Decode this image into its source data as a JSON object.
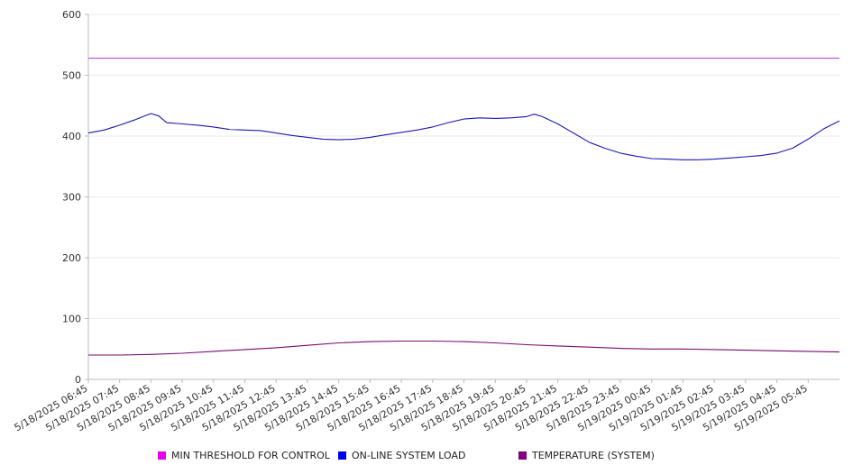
{
  "chart_data": {
    "type": "line",
    "x_ticks": [
      "5/18/2025 06:45",
      "5/18/2025 07:45",
      "5/18/2025 08:45",
      "5/18/2025 09:45",
      "5/18/2025 10:45",
      "5/18/2025 11:45",
      "5/18/2025 12:45",
      "5/18/2025 13:45",
      "5/18/2025 14:45",
      "5/18/2025 15:45",
      "5/18/2025 16:45",
      "5/18/2025 17:45",
      "5/18/2025 18:45",
      "5/18/2025 19:45",
      "5/18/2025 20:45",
      "5/18/2025 21:45",
      "5/18/2025 22:45",
      "5/18/2025 23:45",
      "5/19/2025 00:45",
      "5/19/2025 01:45",
      "5/19/2025 02:45",
      "5/19/2025 03:45",
      "5/19/2025 04:45",
      "5/19/2025 05:45"
    ],
    "y_ticks": [
      "0",
      "100",
      "200",
      "300",
      "400",
      "500",
      "600"
    ],
    "ylim": [
      0,
      600
    ],
    "grid": true,
    "legend_position": "bottom",
    "series": [
      {
        "name": "MIN THRESHOLD FOR CONTROL",
        "color": "#e600e6",
        "line_color": "#b84bd6",
        "x": [
          "5/18/2025 06:45",
          "5/19/2025 06:45"
        ],
        "values": [
          528,
          528
        ]
      },
      {
        "name": "ON-LINE SYSTEM LOAD",
        "color": "#0000ee",
        "line_color": "#1a1ab0",
        "x": [
          "5/18/2025 06:45",
          "5/18/2025 07:15",
          "5/18/2025 07:45",
          "5/18/2025 08:15",
          "5/18/2025 08:30",
          "5/18/2025 08:45",
          "5/18/2025 09:00",
          "5/18/2025 09:15",
          "5/18/2025 09:45",
          "5/18/2025 10:15",
          "5/18/2025 10:45",
          "5/18/2025 11:15",
          "5/18/2025 11:45",
          "5/18/2025 12:15",
          "5/18/2025 12:45",
          "5/18/2025 13:15",
          "5/18/2025 13:45",
          "5/18/2025 14:15",
          "5/18/2025 14:45",
          "5/18/2025 15:15",
          "5/18/2025 15:45",
          "5/18/2025 16:15",
          "5/18/2025 16:45",
          "5/18/2025 17:15",
          "5/18/2025 17:45",
          "5/18/2025 18:15",
          "5/18/2025 18:45",
          "5/18/2025 19:15",
          "5/18/2025 19:45",
          "5/18/2025 20:15",
          "5/18/2025 20:45",
          "5/18/2025 21:00",
          "5/18/2025 21:15",
          "5/18/2025 21:45",
          "5/18/2025 22:15",
          "5/18/2025 22:45",
          "5/18/2025 23:15",
          "5/18/2025 23:45",
          "5/19/2025 00:15",
          "5/19/2025 00:45",
          "5/19/2025 01:15",
          "5/19/2025 01:45",
          "5/19/2025 02:15",
          "5/19/2025 02:45",
          "5/19/2025 03:15",
          "5/19/2025 03:45",
          "5/19/2025 04:15",
          "5/19/2025 04:45",
          "5/19/2025 05:15",
          "5/19/2025 05:45",
          "5/19/2025 06:15",
          "5/19/2025 06:45"
        ],
        "values": [
          405,
          410,
          418,
          427,
          432,
          437,
          433,
          422,
          420,
          418,
          415,
          411,
          410,
          409,
          405,
          401,
          398,
          395,
          394,
          395,
          398,
          402,
          406,
          410,
          415,
          422,
          428,
          430,
          429,
          430,
          432,
          436,
          432,
          420,
          405,
          390,
          380,
          372,
          367,
          363,
          362,
          361,
          361,
          362,
          364,
          366,
          368,
          372,
          380,
          395,
          412,
          425
        ]
      },
      {
        "name": "TEMPERATURE (SYSTEM)",
        "color": "#800080",
        "line_color": "#7a0a6e",
        "x": [
          "5/18/2025 06:45",
          "5/18/2025 07:45",
          "5/18/2025 08:45",
          "5/18/2025 09:45",
          "5/18/2025 10:45",
          "5/18/2025 11:45",
          "5/18/2025 12:45",
          "5/18/2025 13:45",
          "5/18/2025 14:45",
          "5/18/2025 15:45",
          "5/18/2025 16:45",
          "5/18/2025 17:45",
          "5/18/2025 18:45",
          "5/18/2025 19:45",
          "5/18/2025 20:45",
          "5/18/2025 21:45",
          "5/18/2025 22:45",
          "5/18/2025 23:45",
          "5/19/2025 00:45",
          "5/19/2025 01:45",
          "5/19/2025 02:45",
          "5/19/2025 03:45",
          "5/19/2025 04:45",
          "5/19/2025 05:45",
          "5/19/2025 06:45"
        ],
        "values": [
          40,
          40,
          41,
          43,
          46,
          49,
          52,
          56,
          60,
          62,
          63,
          63,
          62,
          60,
          57,
          55,
          53,
          51,
          50,
          50,
          49,
          48,
          47,
          46,
          45
        ]
      }
    ]
  }
}
